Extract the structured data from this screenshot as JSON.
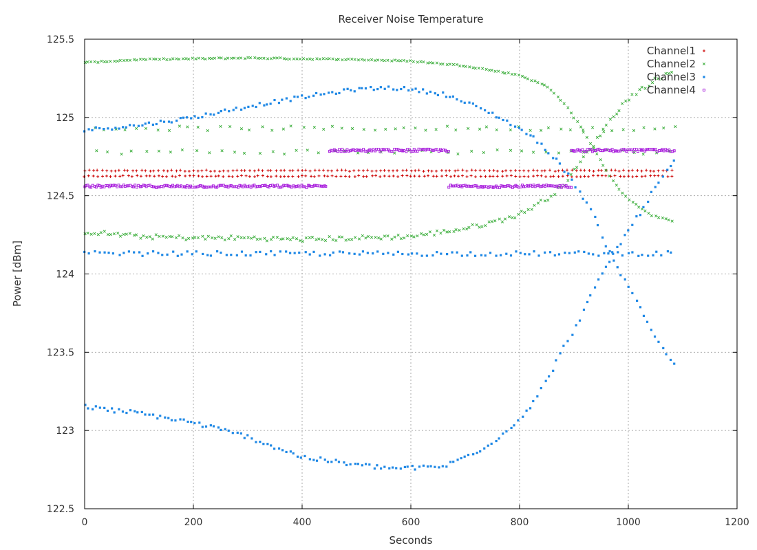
{
  "chart_data": {
    "type": "scatter",
    "title": "Receiver Noise Temperature",
    "xlabel": "Seconds",
    "ylabel": "Power [dBm]",
    "xlim": [
      0,
      1200
    ],
    "ylim": [
      122.5,
      125.5
    ],
    "x_ticks": [
      0,
      200,
      400,
      600,
      800,
      1000,
      1200
    ],
    "x_tick_labels": [
      "0",
      "200",
      "400",
      "600",
      "800",
      "1000",
      "1200"
    ],
    "y_ticks": [
      122.5,
      123,
      123.5,
      124,
      124.5,
      125,
      125.5
    ],
    "y_tick_labels": [
      "122.5",
      "123",
      "123.5",
      "124",
      "124.5",
      "125",
      "125.5"
    ],
    "grid": true,
    "legend_position": "top-right",
    "series": [
      {
        "name": "Channel1",
        "color": "#cc0000",
        "marker": "plus",
        "segments": [
          {
            "x": [
              0,
              1085,
              8
            ],
            "y": [
              [
                0,
                124.66
              ],
              [
                1085,
                124.66
              ]
            ],
            "jitter": 0.004
          },
          {
            "x": [
              0,
              1085,
              8
            ],
            "y": [
              [
                0,
                124.625
              ],
              [
                1085,
                124.625
              ]
            ],
            "jitter": 0.004
          }
        ]
      },
      {
        "name": "Channel2",
        "color": "#33aa33",
        "marker": "x",
        "segments": [
          {
            "x": [
              0,
              1085,
              6
            ],
            "y": [
              [
                0,
                125.35
              ],
              [
                100,
                125.37
              ],
              [
                300,
                125.38
              ],
              [
                500,
                125.37
              ],
              [
                600,
                125.36
              ],
              [
                700,
                125.33
              ],
              [
                800,
                125.27
              ],
              [
                850,
                125.2
              ],
              [
                880,
                125.1
              ],
              [
                910,
                124.95
              ],
              [
                940,
                124.78
              ],
              [
                970,
                124.6
              ],
              [
                1000,
                124.48
              ],
              [
                1040,
                124.38
              ],
              [
                1085,
                124.33
              ]
            ],
            "jitter": 0.004
          },
          {
            "x": [
              0,
              1085,
              6
            ],
            "y": [
              [
                0,
                124.27
              ],
              [
                100,
                124.24
              ],
              [
                200,
                124.23
              ],
              [
                300,
                124.23
              ],
              [
                400,
                124.22
              ],
              [
                500,
                124.23
              ],
              [
                600,
                124.24
              ],
              [
                700,
                124.29
              ],
              [
                750,
                124.33
              ],
              [
                800,
                124.38
              ],
              [
                850,
                124.48
              ],
              [
                880,
                124.57
              ],
              [
                910,
                124.7
              ],
              [
                940,
                124.85
              ],
              [
                970,
                125.0
              ],
              [
                1000,
                125.12
              ],
              [
                1040,
                125.22
              ],
              [
                1085,
                125.3
              ]
            ],
            "jitter": 0.015
          },
          {
            "x": [
              20,
              1085,
              19
            ],
            "y": [
              [
                20,
                124.93
              ],
              [
                1085,
                124.93
              ]
            ],
            "jitter": 0.015
          },
          {
            "x": [
              20,
              1085,
              23
            ],
            "y": [
              [
                20,
                124.78
              ],
              [
                1085,
                124.78
              ]
            ],
            "jitter": 0.015
          }
        ]
      },
      {
        "name": "Channel3",
        "color": "#1f88e5",
        "marker": "square",
        "segments": [
          {
            "x": [
              0,
              1085,
              7
            ],
            "y": [
              [
                0,
                124.92
              ],
              [
                100,
                124.95
              ],
              [
                200,
                125.0
              ],
              [
                300,
                125.07
              ],
              [
                400,
                125.13
              ],
              [
                500,
                125.18
              ],
              [
                560,
                125.19
              ],
              [
                600,
                125.18
              ],
              [
                660,
                125.15
              ],
              [
                720,
                125.07
              ],
              [
                780,
                124.97
              ],
              [
                830,
                124.86
              ],
              [
                870,
                124.72
              ],
              [
                900,
                124.58
              ],
              [
                930,
                124.42
              ],
              [
                960,
                124.18
              ],
              [
                990,
                123.98
              ],
              [
                1020,
                123.8
              ],
              [
                1050,
                123.6
              ],
              [
                1085,
                123.42
              ]
            ],
            "jitter": 0.012
          },
          {
            "x": [
              0,
              1085,
              7
            ],
            "y": [
              [
                0,
                123.15
              ],
              [
                100,
                123.11
              ],
              [
                200,
                123.05
              ],
              [
                300,
                122.96
              ],
              [
                400,
                122.83
              ],
              [
                500,
                122.78
              ],
              [
                560,
                122.76
              ],
              [
                600,
                122.76
              ],
              [
                660,
                122.77
              ],
              [
                720,
                122.86
              ],
              [
                780,
                123.0
              ],
              [
                830,
                123.2
              ],
              [
                870,
                123.45
              ],
              [
                900,
                123.65
              ],
              [
                930,
                123.85
              ],
              [
                960,
                124.05
              ],
              [
                990,
                124.22
              ],
              [
                1020,
                124.38
              ],
              [
                1050,
                124.55
              ],
              [
                1085,
                124.72
              ]
            ],
            "jitter": 0.015
          },
          {
            "x": [
              0,
              1085,
              9
            ],
            "y": [
              [
                0,
                124.13
              ],
              [
                1085,
                124.13
              ]
            ],
            "jitter": 0.015
          }
        ]
      },
      {
        "name": "Channel4",
        "color": "#aa22dd",
        "marker": "square-open",
        "segments": [
          {
            "x": [
              0,
              445,
              3
            ],
            "y": [
              [
                0,
                124.56
              ],
              [
                445,
                124.56
              ]
            ],
            "jitter": 0.008
          },
          {
            "x": [
              450,
              670,
              3
            ],
            "y": [
              [
                450,
                124.79
              ],
              [
                670,
                124.79
              ]
            ],
            "jitter": 0.008
          },
          {
            "x": [
              670,
              895,
              3
            ],
            "y": [
              [
                670,
                124.56
              ],
              [
                895,
                124.56
              ]
            ],
            "jitter": 0.008
          },
          {
            "x": [
              895,
              1085,
              3
            ],
            "y": [
              [
                895,
                124.79
              ],
              [
                1085,
                124.79
              ]
            ],
            "jitter": 0.008
          }
        ]
      }
    ]
  }
}
